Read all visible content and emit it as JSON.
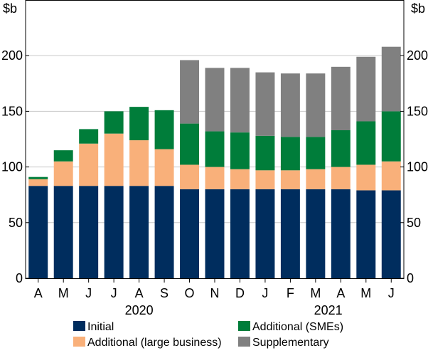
{
  "chart_data": {
    "type": "bar",
    "stacked": true,
    "unit_left": "$b",
    "unit_right": "$b",
    "ylim": [
      0,
      250
    ],
    "yticks": [
      0,
      50,
      100,
      150,
      200
    ],
    "grid": true,
    "categories": [
      "A",
      "M",
      "J",
      "J",
      "A",
      "S",
      "O",
      "N",
      "D",
      "J",
      "F",
      "M",
      "A",
      "M",
      "J"
    ],
    "years": [
      {
        "label": "2020",
        "from": 0,
        "to": 8
      },
      {
        "label": "2021",
        "from": 9,
        "to": 14
      }
    ],
    "series": [
      {
        "name": "Initial",
        "color": "#002d5e",
        "values": [
          83,
          83,
          83,
          83,
          83,
          83,
          80,
          80,
          80,
          80,
          80,
          80,
          80,
          79,
          79
        ]
      },
      {
        "name": "Additional (large business)",
        "color": "#f9b07a",
        "values": [
          6,
          22,
          38,
          47,
          41,
          33,
          22,
          20,
          18,
          17,
          17,
          18,
          20,
          23,
          26
        ]
      },
      {
        "name": "Additional (SMEs)",
        "color": "#007d3a",
        "values": [
          2,
          10,
          13,
          20,
          30,
          35,
          37,
          32,
          33,
          31,
          30,
          29,
          33,
          39,
          45
        ]
      },
      {
        "name": "Supplementary",
        "color": "#808080",
        "values": [
          0,
          0,
          0,
          0,
          0,
          0,
          57,
          57,
          58,
          57,
          57,
          57,
          57,
          58,
          58
        ]
      }
    ],
    "legend": [
      {
        "name": "Initial",
        "color": "#002d5e"
      },
      {
        "name": "Additional (SMEs)",
        "color": "#007d3a"
      },
      {
        "name": "Additional (large business)",
        "color": "#f9b07a"
      },
      {
        "name": "Supplementary",
        "color": "#808080"
      }
    ],
    "legend_position": "bottom"
  }
}
